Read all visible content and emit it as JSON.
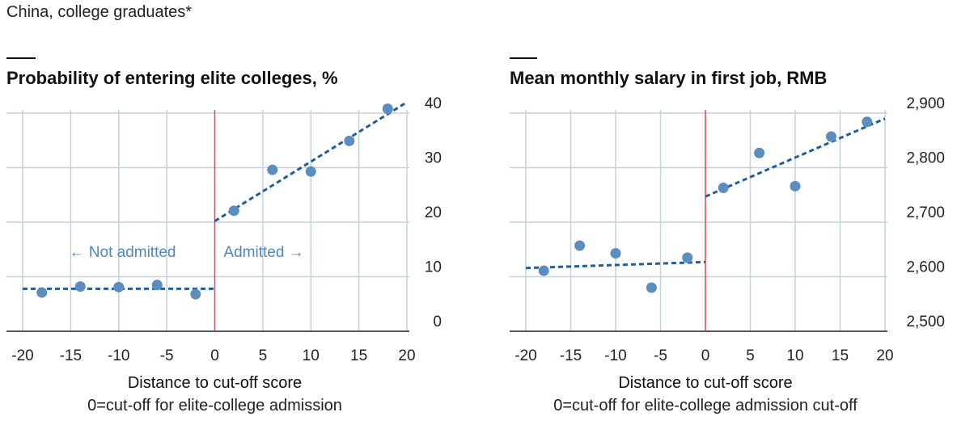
{
  "header": "China, college graduates*",
  "colors": {
    "dot": "#5b8dbf",
    "fit": "#1f5f99",
    "cutoff": "#e3434a",
    "grid": "#c4d2dc",
    "axis": "#222222",
    "annotation": "#4f87bf"
  },
  "chart_data": [
    {
      "type": "scatter",
      "title": "Probability of entering elite colleges, %",
      "xlabel": "Distance to cut-off score",
      "xlabel_sub": "0=cut-off for elite-college admission",
      "ylabel": "",
      "xlim": [
        -20,
        20
      ],
      "ylim": [
        0,
        40
      ],
      "x_ticks": [
        -20,
        -15,
        -10,
        -5,
        0,
        5,
        10,
        15,
        20
      ],
      "x_tick_labels": [
        "-20",
        "-15",
        "-10",
        "-5",
        "0",
        "5",
        "10",
        "15",
        "20"
      ],
      "y_ticks": [
        0,
        10,
        20,
        30,
        40
      ],
      "y_tick_labels": [
        "0",
        "10",
        "20",
        "30",
        "40"
      ],
      "y_axis_side": "right",
      "grid": true,
      "cutoff_x": 0,
      "points": [
        {
          "x": -18,
          "y": 7.1
        },
        {
          "x": -14,
          "y": 8.2
        },
        {
          "x": -10,
          "y": 8.1
        },
        {
          "x": -6,
          "y": 8.5
        },
        {
          "x": -2,
          "y": 6.8
        },
        {
          "x": 2,
          "y": 22.1
        },
        {
          "x": 6,
          "y": 29.6
        },
        {
          "x": 10,
          "y": 29.3
        },
        {
          "x": 14,
          "y": 34.9
        },
        {
          "x": 18,
          "y": 40.8
        }
      ],
      "fit_lines": [
        {
          "x": [
            -20,
            0
          ],
          "y": [
            7.8,
            7.8
          ]
        },
        {
          "x": [
            0,
            20
          ],
          "y": [
            20.2,
            42.0
          ]
        }
      ],
      "annotations": [
        {
          "text": "← Not admitted",
          "x": -9.6,
          "y": 14.7
        },
        {
          "text": "Admitted →",
          "x": 5.1,
          "y": 14.7
        }
      ]
    },
    {
      "type": "scatter",
      "title": "Mean monthly salary in first job, RMB",
      "xlabel": "Distance to cut-off score",
      "xlabel_sub": "0=cut-off for elite-college admission cut-off",
      "ylabel": "",
      "xlim": [
        -20,
        20
      ],
      "ylim": [
        2500,
        2900
      ],
      "x_ticks": [
        -20,
        -15,
        -10,
        -5,
        0,
        5,
        10,
        15,
        20
      ],
      "x_tick_labels": [
        "-20",
        "-15",
        "-10",
        "-5",
        "0",
        "5",
        "10",
        "15",
        "20"
      ],
      "y_ticks": [
        2500,
        2600,
        2700,
        2800,
        2900
      ],
      "y_tick_labels": [
        "2,500",
        "2,600",
        "2,700",
        "2,800",
        "2,900"
      ],
      "y_axis_side": "right",
      "grid": true,
      "cutoff_x": 0,
      "points": [
        {
          "x": -18,
          "y": 2611
        },
        {
          "x": -14,
          "y": 2657
        },
        {
          "x": -10,
          "y": 2643
        },
        {
          "x": -6,
          "y": 2580
        },
        {
          "x": -2,
          "y": 2635
        },
        {
          "x": 2,
          "y": 2763
        },
        {
          "x": 6,
          "y": 2827
        },
        {
          "x": 10,
          "y": 2766
        },
        {
          "x": 14,
          "y": 2857
        },
        {
          "x": 18,
          "y": 2884
        }
      ],
      "fit_lines": [
        {
          "x": [
            -20,
            0
          ],
          "y": [
            2616,
            2627
          ]
        },
        {
          "x": [
            0,
            20
          ],
          "y": [
            2747,
            2890
          ]
        }
      ],
      "annotations": []
    }
  ]
}
